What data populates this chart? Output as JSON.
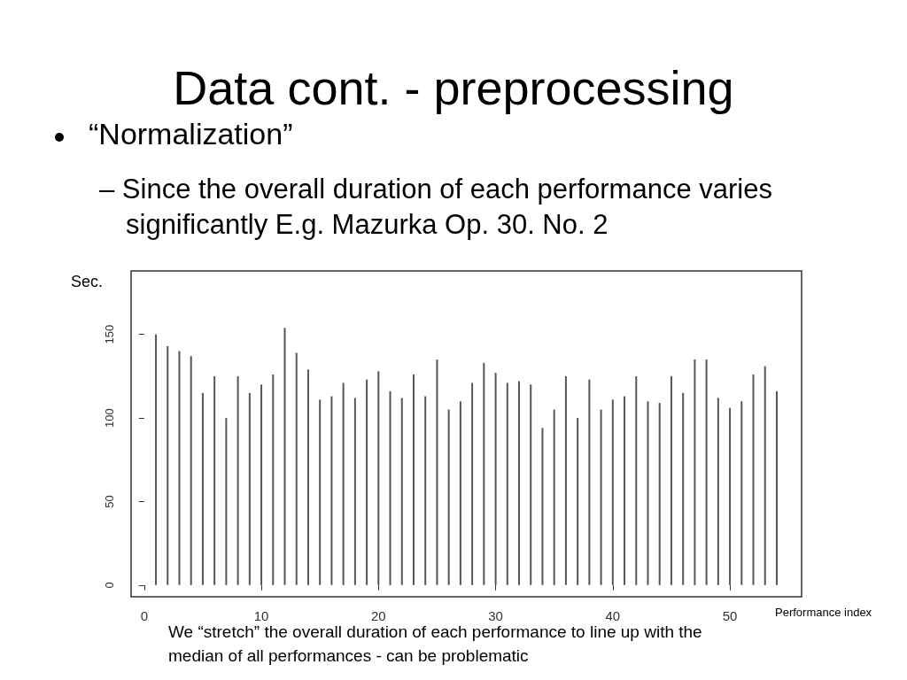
{
  "chart_data": {
    "type": "bar",
    "title": "Data cont. - preprocessing",
    "subtitle": "“Normalization”",
    "annotations": [
      "– Since the overall duration of each performance varies significantly E.g. Mazurka Op. 30. No. 2",
      "We “stretch” the overall duration of each performance to line up with the median of all performances - can be problematic"
    ],
    "xlabel": "Performance index",
    "ylabel": "Sec.",
    "x": [
      1,
      2,
      3,
      4,
      5,
      6,
      7,
      8,
      9,
      10,
      11,
      12,
      13,
      14,
      15,
      16,
      17,
      18,
      19,
      20,
      21,
      22,
      23,
      24,
      25,
      26,
      27,
      28,
      29,
      30,
      31,
      32,
      33,
      34,
      35,
      36,
      37,
      38,
      39,
      40,
      41,
      42,
      43,
      44,
      45,
      46,
      47,
      48,
      49,
      50,
      51,
      52,
      53,
      54
    ],
    "values": [
      150,
      143,
      140,
      137,
      115,
      125,
      100,
      125,
      115,
      120,
      126,
      154,
      139,
      129,
      111,
      113,
      121,
      112,
      123,
      128,
      116,
      112,
      126,
      113,
      135,
      105,
      110,
      121,
      133,
      127,
      121,
      122,
      120,
      94,
      105,
      125,
      100,
      123,
      105,
      111,
      113,
      125,
      110,
      109,
      125,
      115,
      135,
      135,
      112,
      106,
      110,
      126,
      131,
      116
    ],
    "color": "#555555",
    "xlim": [
      -1.12,
      56.12
    ],
    "xticks": [
      0,
      10,
      20,
      30,
      40,
      50
    ],
    "ylim": [
      -7,
      188
    ],
    "yticks": [
      0,
      50,
      100,
      150
    ],
    "grid": false
  }
}
